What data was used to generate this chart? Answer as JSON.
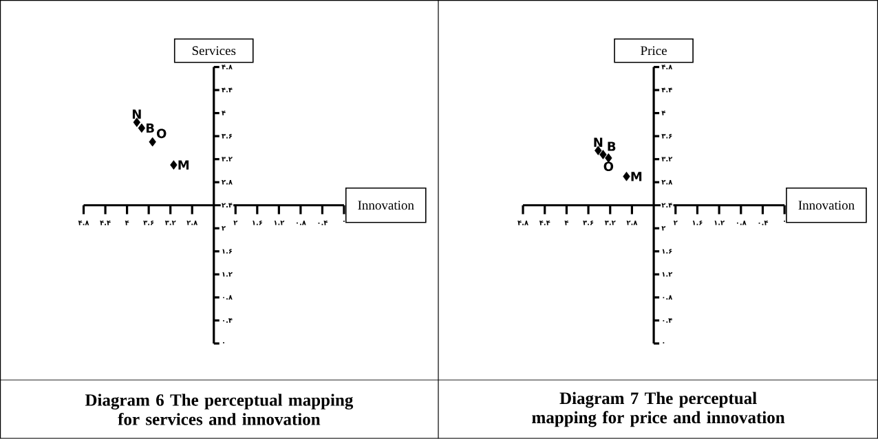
{
  "chart_data": [
    {
      "type": "scatter",
      "title": "Diagram 6 The perceptual mapping for services and innovation",
      "xlabel": "Innovation",
      "ylabel": "Services",
      "marker": "diamond",
      "xlim": [
        4.8,
        0
      ],
      "ylim": [
        0,
        4.8
      ],
      "xticks": [
        {
          "value": 4.8,
          "label": "۴.۸"
        },
        {
          "value": 4.4,
          "label": "۴.۴"
        },
        {
          "value": 4,
          "label": "۴"
        },
        {
          "value": 3.6,
          "label": "۳.۶"
        },
        {
          "value": 3.2,
          "label": "۳.۲"
        },
        {
          "value": 2.8,
          "label": "۲.۸"
        },
        {
          "value": 2.4,
          "label": null
        },
        {
          "value": 2,
          "label": "۲"
        },
        {
          "value": 1.6,
          "label": "۱.۶"
        },
        {
          "value": 1.2,
          "label": "۱.۲"
        },
        {
          "value": 0.8,
          "label": "۰.۸"
        },
        {
          "value": 0.4,
          "label": "۰.۴"
        },
        {
          "value": 0,
          "label": "۰"
        }
      ],
      "yticks": [
        {
          "value": 0,
          "label": "۰"
        },
        {
          "value": 0.4,
          "label": "۰.۴"
        },
        {
          "value": 0.8,
          "label": "۰.۸"
        },
        {
          "value": 1.2,
          "label": "۱.۲"
        },
        {
          "value": 1.6,
          "label": "۱.۶"
        },
        {
          "value": 2,
          "label": "۲"
        },
        {
          "value": 2.4,
          "label": "۲.۴"
        },
        {
          "value": 2.8,
          "label": "۲.۸"
        },
        {
          "value": 3.2,
          "label": "۳.۲"
        },
        {
          "value": 3.6,
          "label": "۳.۶"
        },
        {
          "value": 4,
          "label": "۴"
        },
        {
          "value": 4.4,
          "label": "۴.۴"
        },
        {
          "value": 4.8,
          "label": "۴.۸"
        }
      ],
      "series": [
        {
          "name": "N",
          "color": "#000000",
          "x": [
            3.82
          ],
          "values": [
            3.84
          ]
        },
        {
          "name": "B",
          "color": "#000000",
          "x": [
            3.73
          ],
          "values": [
            3.74
          ]
        },
        {
          "name": "O",
          "color": "#000000",
          "x": [
            3.53
          ],
          "values": [
            3.5
          ]
        },
        {
          "name": "M",
          "color": "#000000",
          "x": [
            3.14
          ],
          "values": [
            3.1
          ]
        }
      ]
    },
    {
      "type": "scatter",
      "title": "Diagram 7 The perceptual mapping for price and innovation",
      "xlabel": "Innovation",
      "ylabel": "Price",
      "marker": "diamond",
      "xlim": [
        4.8,
        0
      ],
      "ylim": [
        0,
        4.8
      ],
      "xticks": [
        {
          "value": 4.8,
          "label": "۴.۸"
        },
        {
          "value": 4.4,
          "label": "۴.۴"
        },
        {
          "value": 4,
          "label": "۴"
        },
        {
          "value": 3.6,
          "label": "۳.۶"
        },
        {
          "value": 3.2,
          "label": "۳.۲"
        },
        {
          "value": 2.8,
          "label": "۲.۸"
        },
        {
          "value": 2.4,
          "label": null
        },
        {
          "value": 2,
          "label": "۲"
        },
        {
          "value": 1.6,
          "label": "۱.۶"
        },
        {
          "value": 1.2,
          "label": "۱.۲"
        },
        {
          "value": 0.8,
          "label": "۰.۸"
        },
        {
          "value": 0.4,
          "label": "۰.۴"
        },
        {
          "value": 0,
          "label": "۰"
        }
      ],
      "yticks": [
        {
          "value": 0,
          "label": "۰"
        },
        {
          "value": 0.4,
          "label": "۰.۴"
        },
        {
          "value": 0.8,
          "label": "۰.۸"
        },
        {
          "value": 1.2,
          "label": "۱.۲"
        },
        {
          "value": 1.6,
          "label": "۱.۶"
        },
        {
          "value": 2,
          "label": "۲"
        },
        {
          "value": 2.4,
          "label": "۲.۴"
        },
        {
          "value": 2.8,
          "label": "۲.۸"
        },
        {
          "value": 3.2,
          "label": "۳.۲"
        },
        {
          "value": 3.6,
          "label": "۳.۶"
        },
        {
          "value": 4,
          "label": "۴"
        },
        {
          "value": 4.4,
          "label": "۴.۴"
        },
        {
          "value": 4.8,
          "label": "۴.۸"
        }
      ],
      "series": [
        {
          "name": "N",
          "color": "#000000",
          "x": [
            3.42
          ],
          "values": [
            3.35
          ]
        },
        {
          "name": "B",
          "color": "#000000",
          "x": [
            3.33
          ],
          "values": [
            3.28
          ]
        },
        {
          "name": "O",
          "color": "#000000",
          "x": [
            3.23
          ],
          "values": [
            3.22
          ]
        },
        {
          "name": "M",
          "color": "#000000",
          "x": [
            2.9
          ],
          "values": [
            2.9
          ]
        }
      ]
    }
  ]
}
